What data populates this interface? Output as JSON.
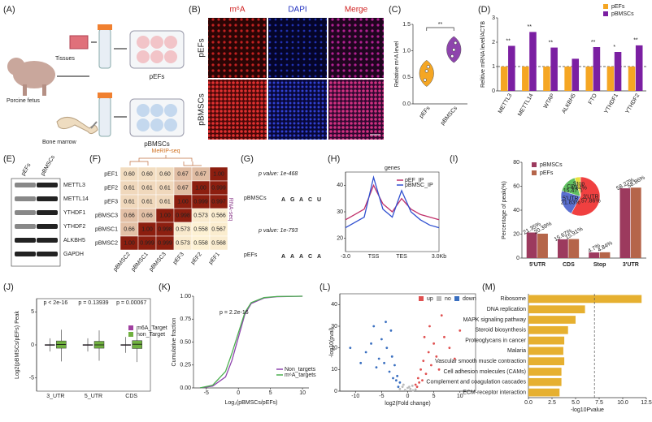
{
  "panel_labels": [
    "(A)",
    "(B)",
    "(C)",
    "(D)",
    "(E)",
    "(F)",
    "(G)",
    "(H)",
    "(I)",
    "(J)",
    "(K)",
    "(L)",
    "(M)"
  ],
  "diagram_a": {
    "tissues": "Tissues",
    "fetus": "Porcine fetus",
    "bone_marrow": "Bone marrow",
    "pefs": "pEFs",
    "pbmscs": "pBMSCs"
  },
  "image_b": {
    "columns": [
      "m⁶A",
      "DAPI",
      "Merge"
    ],
    "rows": [
      "pEFs",
      "pBMSCs"
    ]
  },
  "blot_e": {
    "columns": [
      "pEFs",
      "pBMSCs"
    ],
    "rows": [
      "METTL3",
      "METTL14",
      "YTHDF1",
      "YTHDF2",
      "ALKBH5",
      "GAPDH"
    ]
  },
  "heatmap_f": {
    "top_title": "MeRIP-seq",
    "side_title": "RNA-seq",
    "row_labels": [
      "pEF1",
      "pEF2",
      "pEF3",
      "pBMSC3",
      "pBMSC1",
      "pBMSC2"
    ],
    "col_labels": [
      "pBMSC2",
      "pBMSC1",
      "pBMSC3",
      "pEF3",
      "pEF2",
      "pEF1"
    ],
    "cells": [
      [
        "0.60",
        "0.60",
        "0.60",
        "0.67",
        "0.67",
        "1.00"
      ],
      [
        "0.61",
        "0.61",
        "0.61",
        "0.67",
        "1.00",
        "0.999"
      ],
      [
        "0.61",
        "0.61",
        "0.61",
        "1.00",
        "0.999",
        "0.997"
      ],
      [
        "0.66",
        "0.66",
        "1.00",
        "0.998",
        "0.573",
        "0.566"
      ],
      [
        "0.66",
        "1.00",
        "0.998",
        "0.573",
        "0.558",
        "0.567"
      ],
      [
        "1.00",
        "0.999",
        "0.999",
        "0.573",
        "0.558",
        "0.568"
      ]
    ]
  },
  "motif_g": {
    "colors": {
      "A": "#2e9e3e",
      "G": "#f0a000",
      "C": "#2060c0",
      "U": "#d02020"
    },
    "rows": [
      {
        "pvalue": "p value: 1e-468",
        "label": "pBMSCs",
        "letters": [
          "A",
          "G",
          "A",
          "C",
          "U"
        ]
      },
      {
        "pvalue": "p value: 1e-793",
        "label": "pEFs",
        "letters": [
          "A",
          "A",
          "A",
          "C",
          "A"
        ]
      }
    ]
  },
  "chart_data": [
    {
      "type": "violin",
      "ylabel": "Relative m⁶A level",
      "categories": [
        "pEFs",
        "pBMSCs"
      ],
      "values": [
        [
          0.45,
          0.62,
          0.7
        ],
        [
          0.9,
          1.02,
          1.15
        ]
      ],
      "colors": [
        "#f5a623",
        "#8e44ad"
      ],
      "ylim": [
        0,
        1.5
      ],
      "yticks": [
        {
          "value": 0,
          "label": "0.0"
        },
        {
          "value": 0.5,
          "label": "0.5"
        },
        {
          "value": 1,
          "label": "1.0"
        },
        {
          "value": 1.5,
          "label": "1.5"
        }
      ],
      "annotation": "**"
    },
    {
      "type": "bar",
      "ylabel": "Relitive mRNA level/ACTB",
      "categories": [
        "METTL3",
        "METTL14",
        "WTAP",
        "ALKBH5",
        "FTO",
        "YTHDF1",
        "YTHDF2"
      ],
      "series": [
        {
          "name": "pEFs",
          "color": "#f5a623",
          "values": [
            1,
            1,
            1,
            1,
            1,
            1,
            1
          ]
        },
        {
          "name": "pBMSCs",
          "color": "#7b1fa2",
          "values": [
            1.85,
            2.42,
            1.78,
            1.32,
            1.8,
            1.6,
            1.87
          ]
        }
      ],
      "ylim": [
        0,
        3
      ],
      "yticks": [
        0,
        1,
        2,
        3
      ],
      "annotations": [
        "**",
        "**",
        "**",
        null,
        "**",
        "*",
        "**"
      ],
      "reference_line": 1,
      "legend": "upper right"
    },
    {
      "type": "line",
      "title": "genes",
      "categories": [
        "-3.0",
        null,
        null,
        "TSS",
        null,
        null,
        "TES",
        null,
        null,
        null,
        "3.0Kb"
      ],
      "series": [
        {
          "name": "pEF_IP",
          "color": "#c0306a",
          "values": [
            27,
            29,
            31,
            40,
            33,
            30,
            35,
            31,
            29,
            28,
            27
          ]
        },
        {
          "name": "pBMSC_IP",
          "color": "#3050d0",
          "values": [
            24,
            26,
            28,
            43,
            31,
            28,
            38,
            30,
            27,
            25,
            24
          ]
        }
      ],
      "ylim": [
        15,
        45
      ],
      "yticks": [
        20,
        30,
        40
      ],
      "legend": "upper right"
    },
    {
      "type": "bar",
      "ylabel": "Percentage of peak(%)",
      "categories": [
        "5'UTR",
        "CDS",
        "Stop",
        "3'UTR"
      ],
      "series": [
        {
          "name": "pBMSCs",
          "color": "#9c3a5e",
          "values": [
            21.35,
            15.67,
            4.7,
            58.27
          ],
          "value_labels": [
            "21.35%",
            "15.67%",
            "4.7%",
            "58.27%"
          ]
        },
        {
          "name": "pEFs",
          "color": "#b5654a",
          "values": [
            20.39,
            15.91,
            4.84,
            58.86
          ],
          "value_labels": [
            "20.39%",
            "15.91%",
            "4.84%",
            "58.86%"
          ]
        }
      ],
      "ylim": [
        0,
        80
      ],
      "yticks": [
        0,
        20,
        40,
        60,
        80
      ],
      "legend": "upper left",
      "inset": {
        "type": "pie",
        "categories": [
          "3'UTR",
          "5'UTR",
          "CDS",
          "Stop"
        ],
        "values": [
          57.86,
          21.83,
          15.47,
          4.84
        ],
        "value_labels": [
          "57.86%",
          "21.83%",
          "15.47%",
          "4.84%"
        ],
        "colors": [
          "#f04040",
          "#5a6fd0",
          "#60c060",
          "#e8e040"
        ]
      }
    },
    {
      "type": "box",
      "ylabel": "Log2(pBMSCs/pEFs) Peak",
      "categories": [
        "3_UTR",
        "5_UTR",
        "CDS"
      ],
      "series": [
        {
          "name": "m6A_Target",
          "color": "#a040a0",
          "min": [
            -1,
            -1,
            -1.2
          ],
          "q1": [
            -0.05,
            -0.05,
            -0.05
          ],
          "median": [
            0,
            0,
            0
          ],
          "q3": [
            0.05,
            0.05,
            0.05
          ],
          "max": [
            1,
            1,
            1.2
          ]
        },
        {
          "name": "non_Target",
          "color": "#70b040",
          "min": [
            -2.5,
            -2.4,
            -2.6
          ],
          "q1": [
            -0.5,
            -0.5,
            -0.55
          ],
          "median": [
            0.05,
            0,
            0.1
          ],
          "q3": [
            0.6,
            0.55,
            0.65
          ],
          "max": [
            2.3,
            2.2,
            2.5
          ]
        }
      ],
      "ylim": [
        -7,
        7
      ],
      "yticks": [
        -5,
        0,
        5
      ],
      "annotations": [
        "p < 2e-16",
        "p = 0.13939",
        "p = 0.00067"
      ],
      "legend": "right"
    },
    {
      "type": "line",
      "xlabel": "Log₂(pBMSCs/pEFs)",
      "ylabel": "Cumulative fraction",
      "annotation": "p = 2.2e-16",
      "x": [
        -6,
        -4,
        -2,
        -1,
        0,
        1,
        2,
        4,
        6,
        10
      ],
      "xlim": [
        -7,
        11
      ],
      "xticks": [
        -5,
        0,
        5,
        10
      ],
      "ylim": [
        0,
        1
      ],
      "yticks": [
        {
          "value": 0,
          "label": "0.00"
        },
        0.25,
        {
          "value": 0.5,
          "label": "0.50"
        },
        0.75,
        {
          "value": 1,
          "label": "1.00"
        }
      ],
      "series": [
        {
          "name": "Non_targets",
          "color": "#8e44ad",
          "values": [
            0,
            0.02,
            0.12,
            0.3,
            0.55,
            0.8,
            0.92,
            0.98,
            0.995,
            1
          ]
        },
        {
          "name": "m⁶A_targets",
          "color": "#4caf50",
          "values": [
            0,
            0.03,
            0.18,
            0.38,
            0.6,
            0.82,
            0.93,
            0.985,
            0.997,
            1
          ]
        }
      ],
      "legend": "lower right"
    },
    {
      "type": "scatter",
      "xlabel": "log2(Fold change)",
      "ylabel": "-log10(pval)",
      "xlim": [
        -13,
        13
      ],
      "xticks": [
        -10,
        -5,
        0,
        5,
        10
      ],
      "ylim": [
        0,
        45
      ],
      "yticks": [
        0,
        10,
        20,
        30,
        40
      ],
      "legend": "upper right",
      "series": [
        {
          "name": "up",
          "color": "#e05050",
          "x": [
            1.5,
            2,
            2.5,
            3,
            3.5,
            4,
            4.5,
            5,
            5.5,
            6,
            7,
            8,
            9,
            2.2,
            3.2,
            4.2,
            1.8,
            2.8,
            6.5,
            10
          ],
          "y": [
            3,
            6,
            10,
            14,
            8,
            18,
            12,
            22,
            16,
            10,
            25,
            20,
            15,
            4,
            25,
            30,
            2,
            5,
            35,
            28
          ]
        },
        {
          "name": "no",
          "color": "#bbbbbb",
          "x": [
            -1.5,
            -1,
            -0.5,
            0,
            0.5,
            1,
            1.5,
            -0.8,
            0.3,
            0.9
          ],
          "y": [
            1,
            2,
            0.5,
            1.5,
            1,
            0.3,
            0.8,
            3,
            2,
            2.5
          ]
        },
        {
          "name": "down",
          "color": "#3a6fc0",
          "x": [
            -1.5,
            -2,
            -2.5,
            -3,
            -3.5,
            -4,
            -4.5,
            -5,
            -5.5,
            -6,
            -7,
            -8,
            -9,
            -2.2,
            -3.2,
            -4.2,
            -1.8,
            -2.8,
            -6.5,
            -11
          ],
          "y": [
            4,
            7,
            12,
            16,
            9,
            20,
            13,
            24,
            15,
            11,
            22,
            18,
            13,
            5,
            28,
            32,
            2,
            6,
            30,
            20
          ]
        }
      ]
    },
    {
      "type": "hbar",
      "xlabel": "-log10Pvalue",
      "categories": [
        "Ribosome",
        "DNA replication",
        "MAPK signaling pathway",
        "Steroid biosynthesis",
        "Proteoglycans in cancer",
        "Malaria",
        "Vascular smooth muscle contraction",
        "Cell adhesion molecules (CAMs)",
        "Complement and coagulation cascades",
        "ECM-receptor interaction"
      ],
      "values": [
        12,
        6,
        5,
        4.2,
        3.8,
        3.7,
        3.8,
        3.5,
        3.5,
        3.3
      ],
      "color": "#e6b030",
      "xlim": [
        0,
        12.5
      ],
      "xticks": [
        {
          "value": 0,
          "label": "0.0"
        },
        2.5,
        {
          "value": 5,
          "label": "5.0"
        },
        7.5,
        {
          "value": 10,
          "label": "10.0"
        },
        12.5
      ],
      "reference_line": 7
    }
  ]
}
